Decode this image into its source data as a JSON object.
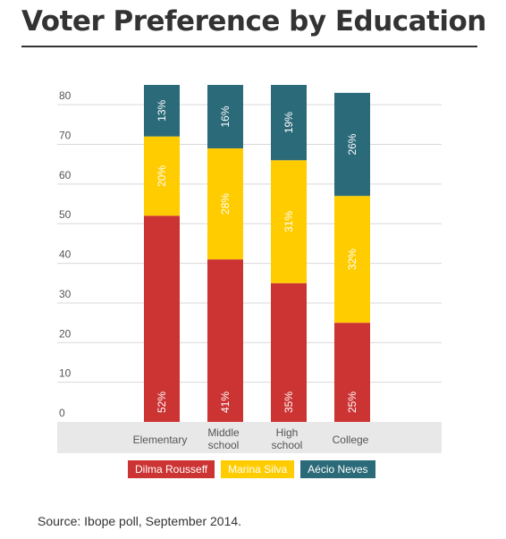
{
  "title": "Voter Preference by Education",
  "source": "Source: Ibope poll, September 2014.",
  "chart_data": {
    "type": "bar",
    "stacked": true,
    "categories": [
      "Elementary",
      "Middle school",
      "High school",
      "College"
    ],
    "category_lines": [
      [
        "Elementary"
      ],
      [
        "Middle",
        "school"
      ],
      [
        "High",
        "school"
      ],
      [
        "College"
      ]
    ],
    "yticks": [
      0,
      10,
      20,
      30,
      40,
      50,
      60,
      70,
      80
    ],
    "ylim": [
      0,
      85
    ],
    "grid": true,
    "legend_position": "bottom",
    "series": [
      {
        "name": "Dilma Rousseff",
        "color": "#cc3333",
        "values": [
          52,
          41,
          35,
          25
        ],
        "labels": [
          "52%",
          "41%",
          "35%",
          "25%"
        ]
      },
      {
        "name": "Marina Silva",
        "color": "#ffcc00",
        "values": [
          20,
          28,
          31,
          32
        ],
        "labels": [
          "20%",
          "28%",
          "31%",
          "32%"
        ]
      },
      {
        "name": "Aécio Neves",
        "color": "#2b6a78",
        "values": [
          13,
          16,
          19,
          26
        ],
        "labels": [
          "13%",
          "16%",
          "19%",
          "26%"
        ]
      }
    ]
  }
}
